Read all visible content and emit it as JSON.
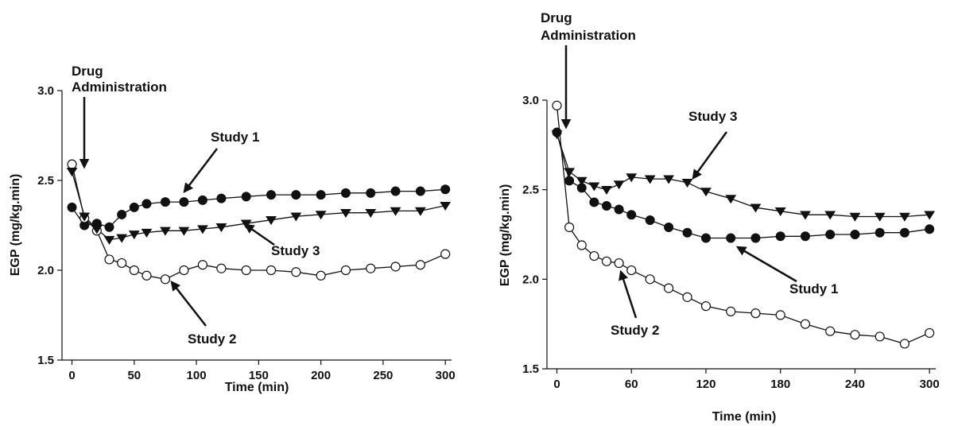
{
  "chart_data": [
    {
      "type": "line",
      "xlabel": "Time (min)",
      "ylabel": "EGP (mg/kg.min)",
      "xlim": [
        -8,
        305
      ],
      "ylim": [
        1.5,
        3.0
      ],
      "xticks": [
        0,
        50,
        100,
        150,
        200,
        250,
        300
      ],
      "yticks": [
        "1.5",
        "2.0",
        "2.5",
        "3.0"
      ],
      "series": [
        {
          "name": "Study 1",
          "marker": "filled-circle",
          "x": [
            0,
            10,
            20,
            30,
            40,
            50,
            60,
            75,
            90,
            105,
            120,
            140,
            160,
            180,
            200,
            220,
            240,
            260,
            280,
            300
          ],
          "y": [
            2.35,
            2.25,
            2.26,
            2.24,
            2.31,
            2.35,
            2.37,
            2.38,
            2.38,
            2.39,
            2.4,
            2.41,
            2.42,
            2.42,
            2.42,
            2.43,
            2.43,
            2.44,
            2.44,
            2.45
          ]
        },
        {
          "name": "Study 2",
          "marker": "open-circle",
          "x": [
            0,
            10,
            20,
            30,
            40,
            50,
            60,
            75,
            90,
            105,
            120,
            140,
            160,
            180,
            200,
            220,
            240,
            260,
            280,
            300
          ],
          "y": [
            2.59,
            2.29,
            2.22,
            2.06,
            2.04,
            2.0,
            1.97,
            1.95,
            2.0,
            2.03,
            2.01,
            2.0,
            2.0,
            1.99,
            1.97,
            2.0,
            2.01,
            2.02,
            2.03,
            2.09
          ]
        },
        {
          "name": "Study 3",
          "marker": "filled-triangle-down",
          "x": [
            0,
            10,
            20,
            30,
            40,
            50,
            60,
            75,
            90,
            105,
            120,
            140,
            160,
            180,
            200,
            220,
            240,
            260,
            280,
            300
          ],
          "y": [
            2.55,
            2.3,
            2.23,
            2.17,
            2.18,
            2.2,
            2.21,
            2.22,
            2.22,
            2.23,
            2.24,
            2.26,
            2.28,
            2.3,
            2.31,
            2.32,
            2.32,
            2.33,
            2.33,
            2.36
          ]
        }
      ],
      "annotations": [
        {
          "text": "Drug",
          "text2": "Administration"
        },
        {
          "text": "Study 1"
        },
        {
          "text": "Study 3"
        },
        {
          "text": "Study 2"
        }
      ]
    },
    {
      "type": "line",
      "xlabel": "Time (min)",
      "ylabel": "EGP (mg/kg.min)",
      "xlim": [
        -8,
        305
      ],
      "ylim": [
        1.5,
        3.0
      ],
      "xticks": [
        0,
        60,
        120,
        180,
        240,
        300
      ],
      "yticks": [
        "1.5",
        "2.0",
        "2.5",
        "3.0"
      ],
      "series": [
        {
          "name": "Study 1",
          "marker": "filled-circle",
          "x": [
            0,
            10,
            20,
            30,
            40,
            50,
            60,
            75,
            90,
            105,
            120,
            140,
            160,
            180,
            200,
            220,
            240,
            260,
            280,
            300
          ],
          "y": [
            2.82,
            2.55,
            2.51,
            2.43,
            2.41,
            2.39,
            2.36,
            2.33,
            2.29,
            2.26,
            2.23,
            2.23,
            2.23,
            2.24,
            2.24,
            2.25,
            2.25,
            2.26,
            2.26,
            2.28
          ]
        },
        {
          "name": "Study 2",
          "marker": "open-circle",
          "x": [
            0,
            10,
            20,
            30,
            40,
            50,
            60,
            75,
            90,
            105,
            120,
            140,
            160,
            180,
            200,
            220,
            240,
            260,
            280,
            300
          ],
          "y": [
            2.97,
            2.29,
            2.19,
            2.13,
            2.1,
            2.09,
            2.05,
            2.0,
            1.95,
            1.9,
            1.85,
            1.82,
            1.81,
            1.8,
            1.75,
            1.71,
            1.69,
            1.68,
            1.64,
            1.7
          ]
        },
        {
          "name": "Study 3",
          "marker": "filled-triangle-down",
          "x": [
            0,
            10,
            20,
            30,
            40,
            50,
            60,
            75,
            90,
            105,
            120,
            140,
            160,
            180,
            200,
            220,
            240,
            260,
            280,
            300
          ],
          "y": [
            2.81,
            2.6,
            2.55,
            2.52,
            2.5,
            2.53,
            2.57,
            2.56,
            2.56,
            2.54,
            2.49,
            2.45,
            2.4,
            2.38,
            2.36,
            2.36,
            2.35,
            2.35,
            2.35,
            2.36
          ]
        }
      ],
      "annotations": [
        {
          "text": "Drug",
          "text2": "Administration"
        },
        {
          "text": "Study 3"
        },
        {
          "text": "Study 1"
        },
        {
          "text": "Study 2"
        }
      ]
    }
  ]
}
